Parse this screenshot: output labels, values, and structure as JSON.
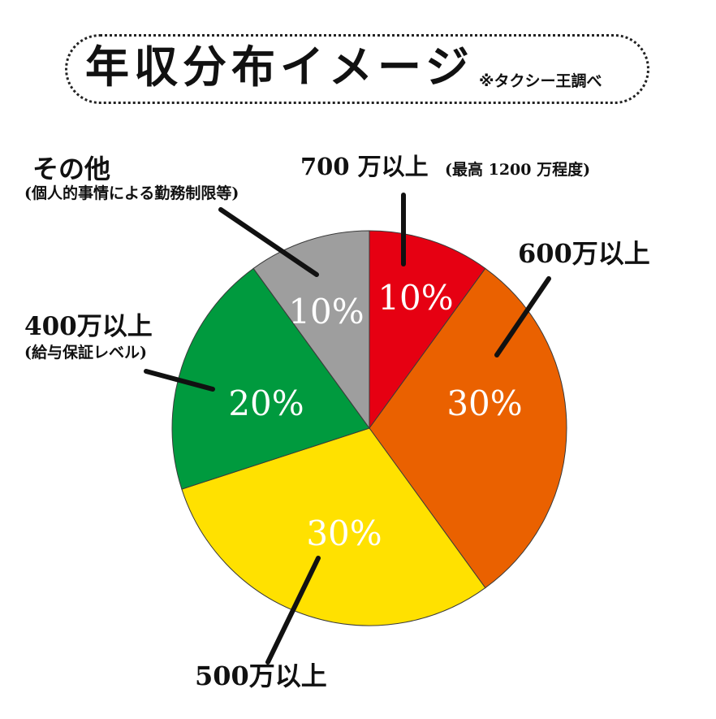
{
  "title": "年収分布イメージ",
  "title_note": "※タクシー王調べ",
  "chart_data": {
    "type": "pie",
    "slices": [
      {
        "label": "700 万以上",
        "sublabel": "(最高 1200 万程度)",
        "value": 10,
        "value_text": "10%",
        "color": "#E60012"
      },
      {
        "label": "600万以上",
        "sublabel": "",
        "value": 30,
        "value_text": "30%",
        "color": "#EA6100"
      },
      {
        "label": "500万以上",
        "sublabel": "",
        "value": 30,
        "value_text": "30%",
        "color": "#FFE100"
      },
      {
        "label": "400万以上",
        "sublabel": "(給与保証レベル)",
        "value": 20,
        "value_text": "20%",
        "color": "#009A3E"
      },
      {
        "label": "その他",
        "sublabel": "(個人的事情による勤務制限等)",
        "value": 10,
        "value_text": "10%",
        "color": "#9E9E9E"
      }
    ],
    "start": "12 o'clock",
    "direction": "clockwise"
  }
}
